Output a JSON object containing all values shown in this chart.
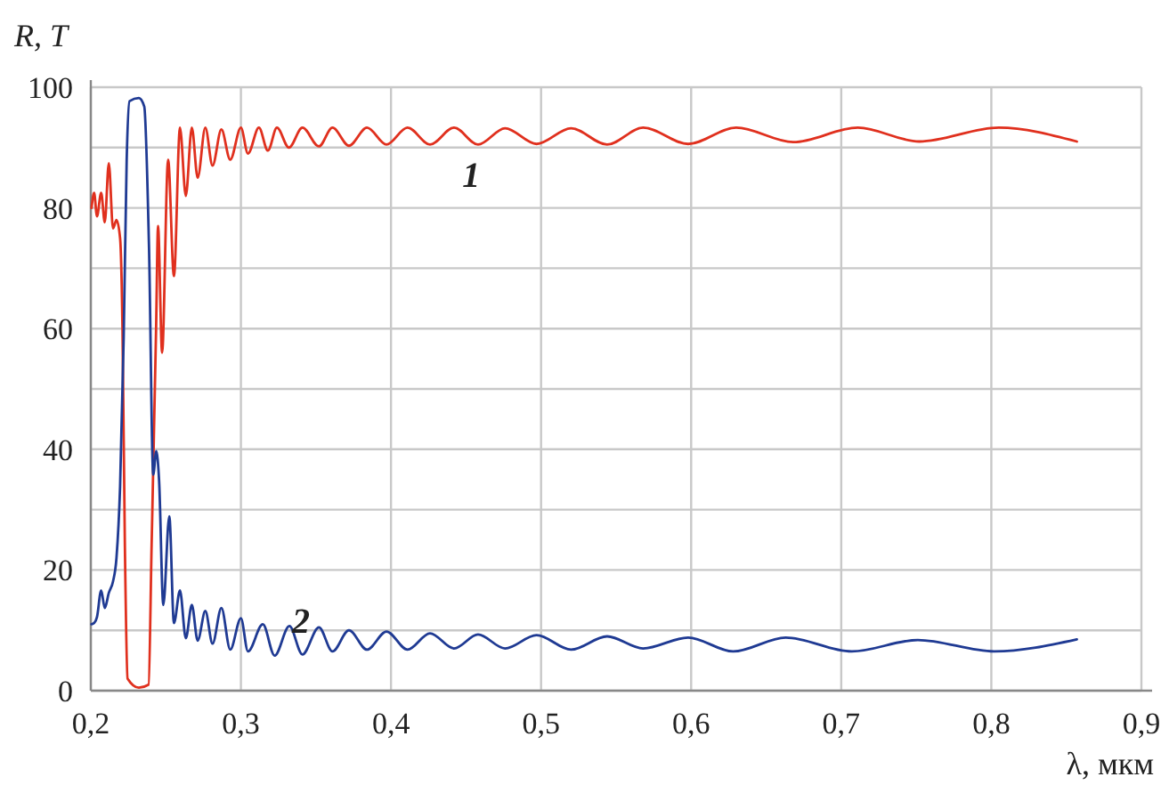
{
  "chart_data": {
    "type": "line",
    "xlabel": "λ, мкм",
    "ylabel": "R, T",
    "xlim": [
      0.2,
      0.9
    ],
    "ylim": [
      0,
      100
    ],
    "xticks": [
      {
        "value": 0.2,
        "label": "0,2"
      },
      {
        "value": 0.3,
        "label": "0,3"
      },
      {
        "value": 0.4,
        "label": "0,4"
      },
      {
        "value": 0.5,
        "label": "0,5"
      },
      {
        "value": 0.6,
        "label": "0,6"
      },
      {
        "value": 0.7,
        "label": "0,7"
      },
      {
        "value": 0.8,
        "label": "0,8"
      },
      {
        "value": 0.9,
        "label": "0,9"
      }
    ],
    "yticks": [
      0,
      {
        "value": 10,
        "label": null
      },
      20,
      {
        "value": 30,
        "label": null
      },
      40,
      {
        "value": 50,
        "label": null
      },
      60,
      {
        "value": 70,
        "label": null
      },
      80,
      {
        "value": 90,
        "label": null
      },
      100
    ],
    "grid": true,
    "marker": "none",
    "line_style": "solid",
    "series": [
      {
        "name": "1",
        "color": "#e0301e",
        "x": [
          0.2005,
          0.2022,
          0.2041,
          0.2069,
          0.2093,
          0.212,
          0.2148,
          0.2171,
          0.2195,
          0.2211,
          0.2227,
          0.2245,
          0.232,
          0.2385,
          0.2405,
          0.2435,
          0.2448,
          0.2475,
          0.2515,
          0.2554,
          0.2594,
          0.2633,
          0.2673,
          0.2712,
          0.2763,
          0.2811,
          0.287,
          0.2929,
          0.3,
          0.3047,
          0.312,
          0.318,
          0.324,
          0.332,
          0.341,
          0.352,
          0.361,
          0.372,
          0.384,
          0.397,
          0.411,
          0.426,
          0.442,
          0.458,
          0.476,
          0.497,
          0.52,
          0.544,
          0.568,
          0.598,
          0.63,
          0.668,
          0.711,
          0.752,
          0.805,
          0.857
        ],
        "values": [
          80,
          82.5,
          78.6,
          82.5,
          77.6,
          87.4,
          76.6,
          78,
          75,
          60,
          24,
          2,
          0.5,
          1,
          24,
          60,
          77,
          56,
          88,
          68.7,
          93.3,
          82,
          93.3,
          85,
          93.3,
          87,
          93,
          88,
          93.3,
          89,
          93.3,
          89.5,
          93.3,
          90,
          93.3,
          90.2,
          93.3,
          90.3,
          93.3,
          90.5,
          93.3,
          90.5,
          93.3,
          90.5,
          93.2,
          90.6,
          93.2,
          90.5,
          93.3,
          90.6,
          93.3,
          90.9,
          93.3,
          91,
          93.3,
          91
        ]
      },
      {
        "name": "2",
        "color": "#1f3a93",
        "x": [
          0.2005,
          0.2022,
          0.2041,
          0.2069,
          0.2093,
          0.212,
          0.2148,
          0.2171,
          0.2195,
          0.2219,
          0.2239,
          0.2258,
          0.232,
          0.2356,
          0.2388,
          0.2416,
          0.2436,
          0.2455,
          0.2483,
          0.2523,
          0.2554,
          0.2594,
          0.2633,
          0.2673,
          0.2712,
          0.2763,
          0.2811,
          0.287,
          0.2929,
          0.3,
          0.3047,
          0.3146,
          0.3225,
          0.3323,
          0.341,
          0.352,
          0.361,
          0.372,
          0.384,
          0.397,
          0.411,
          0.426,
          0.442,
          0.458,
          0.476,
          0.497,
          0.52,
          0.544,
          0.568,
          0.598,
          0.628,
          0.663,
          0.707,
          0.751,
          0.802,
          0.857
        ],
        "values": [
          11,
          11.2,
          12.2,
          16.6,
          13.7,
          16.2,
          18.1,
          22,
          33.8,
          58.4,
          88,
          97.7,
          98.2,
          96.8,
          73.2,
          35.8,
          39.7,
          34.8,
          14.2,
          28.9,
          11.2,
          16.6,
          8.7,
          14.2,
          8.3,
          13.2,
          7.8,
          13.7,
          6.8,
          12,
          6.5,
          11,
          5.8,
          10.7,
          6,
          10.5,
          6.5,
          10,
          6.8,
          9.8,
          6.8,
          9.5,
          7,
          9.3,
          7,
          9.2,
          6.8,
          9,
          7,
          8.8,
          6.5,
          8.8,
          6.5,
          8.4,
          6.5,
          8.5
        ]
      }
    ]
  }
}
